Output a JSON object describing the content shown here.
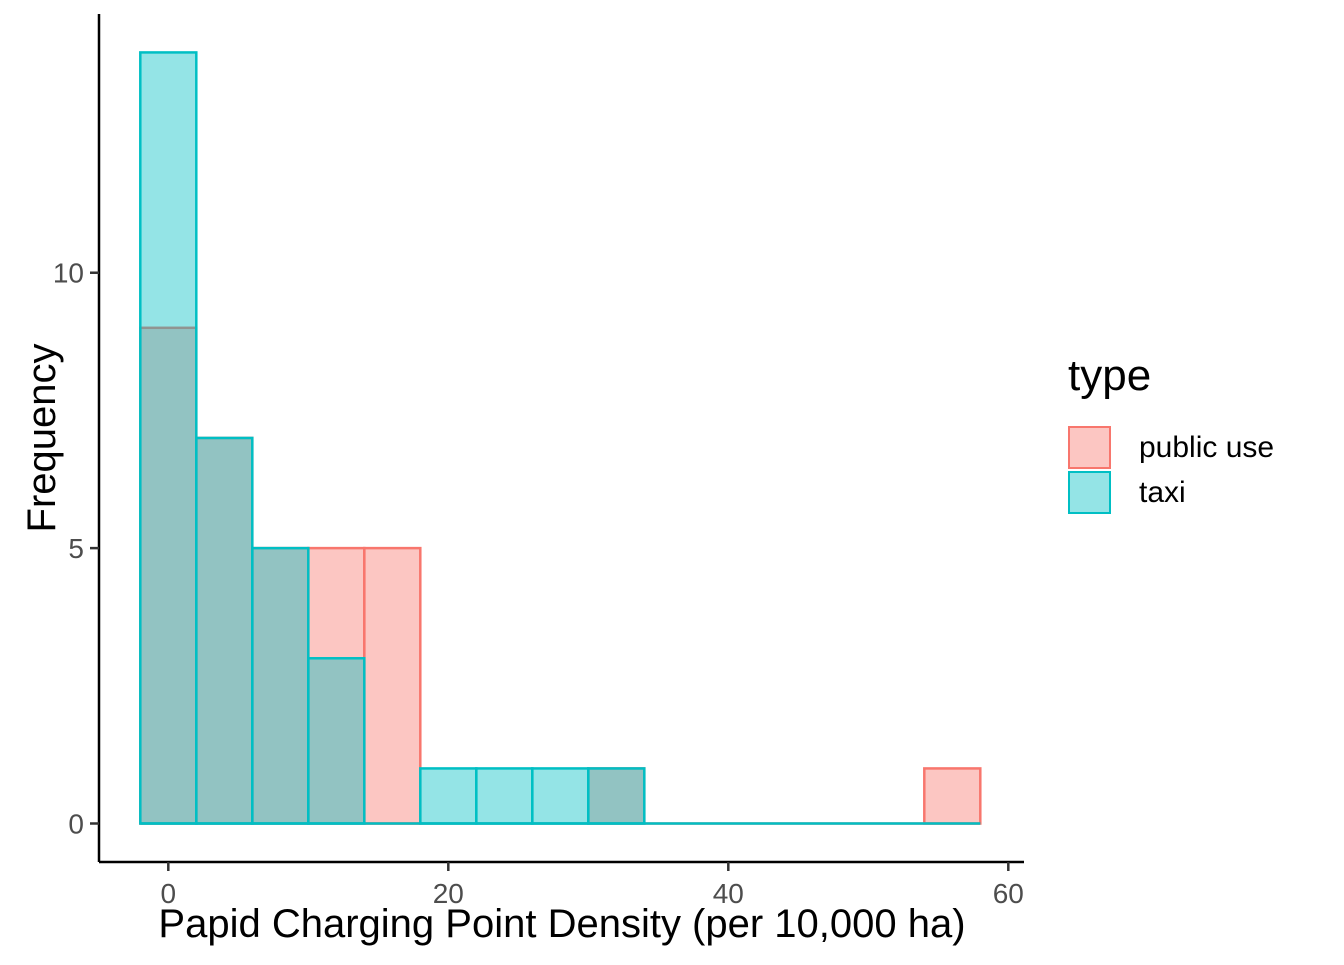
{
  "chart_data": {
    "type": "histogram",
    "title": "",
    "xlabel": "Papid Charging Point Density (per 10,000 ha)",
    "ylabel": "Frequency",
    "legend": {
      "title": "type",
      "position": "right"
    },
    "bins": {
      "start": -2,
      "width": 4,
      "count": 15
    },
    "series": [
      {
        "name": "public use",
        "color": "#F8766D",
        "counts": [
          9,
          7,
          5,
          5,
          5,
          0,
          0,
          0,
          1,
          0,
          0,
          0,
          0,
          0,
          1
        ]
      },
      {
        "name": "taxi",
        "color": "#00BFC4",
        "counts": [
          14,
          7,
          5,
          3,
          0,
          1,
          1,
          1,
          1,
          0,
          0,
          0,
          0,
          0,
          0
        ]
      }
    ],
    "fill_alpha": 0.42,
    "x_ticks": [
      0,
      20,
      40,
      60
    ],
    "y_ticks": [
      0,
      5,
      10
    ],
    "xlim": [
      -5,
      61
    ],
    "ylim": [
      -0.7,
      14.7
    ],
    "grid": false,
    "background": "#FFFFFF",
    "axis_color": "#000000",
    "tick_color": "#333333",
    "tick_label_color": "#4D4D4D",
    "title_color": "#000000"
  }
}
